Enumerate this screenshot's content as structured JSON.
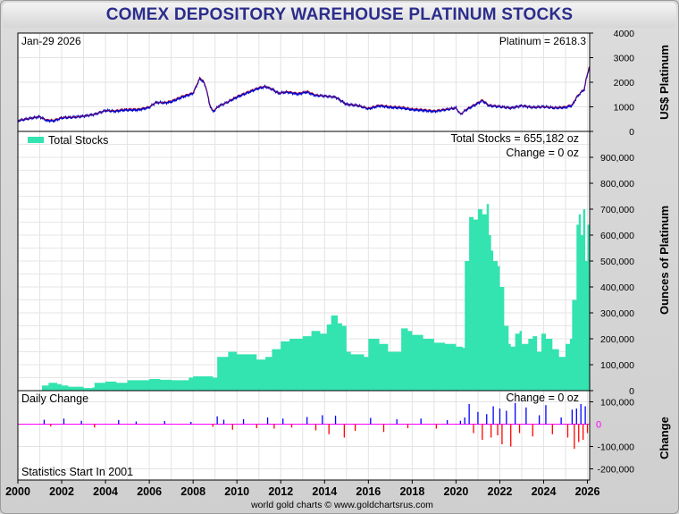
{
  "title": "COMEX DEPOSITORY WAREHOUSE PLATINUM STOCKS",
  "footer": "world gold charts © www.goldchartsrus.com",
  "colors": {
    "stocks": "#33e3b0",
    "price_up": "#cc0000",
    "price_down": "#0000cc",
    "zero_line": "#ff00ff",
    "change_pos": "#0000ff",
    "change_neg": "#ff0000"
  },
  "chart_data": [
    {
      "type": "line",
      "name": "price",
      "date_label": "Jan-29  2026",
      "value_label": "Platinum = 2618.3",
      "ylabel": "US$ Platinum",
      "ylim": [
        0,
        4000
      ],
      "yticks": [
        0,
        1000,
        2000,
        3000,
        4000
      ],
      "x": [
        2000.0,
        2000.5,
        2001.0,
        2001.3,
        2001.6,
        2002.0,
        2002.5,
        2003.0,
        2003.5,
        2004.0,
        2004.4,
        2004.8,
        2005.5,
        2006.0,
        2006.3,
        2006.7,
        2007.0,
        2007.5,
        2008.0,
        2008.15,
        2008.3,
        2008.45,
        2008.6,
        2008.75,
        2008.9,
        2009.2,
        2009.6,
        2010.0,
        2010.5,
        2011.0,
        2011.3,
        2011.6,
        2011.9,
        2012.3,
        2012.8,
        2013.2,
        2013.6,
        2014.0,
        2014.5,
        2015.0,
        2015.5,
        2016.0,
        2016.5,
        2017.0,
        2017.5,
        2018.0,
        2018.5,
        2019.0,
        2019.5,
        2020.0,
        2020.2,
        2020.5,
        2021.0,
        2021.2,
        2021.5,
        2022.0,
        2022.5,
        2023.0,
        2023.5,
        2024.0,
        2024.5,
        2025.0,
        2025.3,
        2025.5,
        2025.7,
        2025.85,
        2025.95,
        2026.08
      ],
      "values": [
        430,
        520,
        600,
        450,
        420,
        550,
        570,
        620,
        700,
        850,
        820,
        860,
        880,
        980,
        1180,
        1160,
        1200,
        1400,
        1550,
        1850,
        2150,
        2050,
        1750,
        1100,
        800,
        1050,
        1200,
        1400,
        1580,
        1750,
        1820,
        1720,
        1550,
        1600,
        1520,
        1600,
        1460,
        1440,
        1400,
        1100,
        1050,
        920,
        1050,
        980,
        950,
        880,
        860,
        820,
        880,
        950,
        700,
        900,
        1150,
        1250,
        1050,
        1000,
        950,
        1050,
        980,
        1000,
        950,
        980,
        1050,
        1380,
        1580,
        1700,
        2150,
        2618.3
      ]
    },
    {
      "type": "area",
      "name": "total_stocks",
      "legend": "Total Stocks",
      "total_label": "Total Stocks = 655,182 oz",
      "change_label": "Change = 0 oz",
      "ylabel": "Ounces of Platinum",
      "ylim": [
        0,
        1000000
      ],
      "yticks": [
        0,
        100000,
        200000,
        300000,
        400000,
        500000,
        600000,
        700000,
        800000,
        900000
      ],
      "ytick_labels": [
        "0",
        "100,000",
        "200,000",
        "300,000",
        "400,000",
        "500,000",
        "600,000",
        "700,000",
        "800,000",
        "900,000"
      ],
      "x": [
        2001.1,
        2001.4,
        2001.8,
        2002.0,
        2002.3,
        2003.0,
        2003.4,
        2003.5,
        2004.0,
        2004.5,
        2005.0,
        2006.0,
        2006.5,
        2007.0,
        2007.8,
        2008.0,
        2008.9,
        2009.1,
        2009.6,
        2010.0,
        2010.9,
        2011.3,
        2011.6,
        2012.0,
        2012.4,
        2013.0,
        2013.4,
        2013.8,
        2014.1,
        2014.3,
        2014.6,
        2014.8,
        2015.0,
        2015.2,
        2015.8,
        2016.0,
        2016.5,
        2016.9,
        2017.5,
        2017.8,
        2018.0,
        2018.5,
        2019.0,
        2019.5,
        2020.0,
        2020.3,
        2020.4,
        2020.6,
        2020.8,
        2021.0,
        2021.2,
        2021.4,
        2021.5,
        2021.6,
        2021.7,
        2021.9,
        2022.0,
        2022.2,
        2022.4,
        2022.5,
        2022.7,
        2022.9,
        2023.0,
        2023.3,
        2023.5,
        2023.7,
        2023.9,
        2024.1,
        2024.4,
        2024.7,
        2025.0,
        2025.2,
        2025.3,
        2025.5,
        2025.6,
        2025.7,
        2025.8,
        2025.9,
        2026.0,
        2026.08
      ],
      "values": [
        20000,
        30000,
        25000,
        20000,
        15000,
        10000,
        12000,
        30000,
        35000,
        30000,
        40000,
        45000,
        42000,
        40000,
        50000,
        55000,
        50000,
        130000,
        150000,
        140000,
        120000,
        130000,
        160000,
        190000,
        200000,
        210000,
        230000,
        220000,
        255000,
        290000,
        260000,
        250000,
        150000,
        140000,
        130000,
        200000,
        180000,
        150000,
        240000,
        230000,
        215000,
        200000,
        185000,
        180000,
        170000,
        165000,
        500000,
        670000,
        660000,
        700000,
        680000,
        720000,
        600000,
        540000,
        500000,
        480000,
        400000,
        250000,
        180000,
        170000,
        220000,
        230000,
        180000,
        200000,
        210000,
        150000,
        220000,
        200000,
        160000,
        130000,
        180000,
        200000,
        350000,
        640000,
        680000,
        600000,
        700000,
        500000,
        640000,
        655182
      ]
    },
    {
      "type": "bar",
      "name": "daily_change",
      "label": "Daily Change",
      "change_label": "Change = 0 oz",
      "ylabel": "Change",
      "note": "Statistics Start In 2001",
      "ylim": [
        -250000,
        150000
      ],
      "yticks": [
        -200000,
        -100000,
        0,
        100000
      ],
      "ytick_labels": [
        "-200,000",
        "-100,000",
        "0",
        "100,000"
      ],
      "x": [
        2001.2,
        2001.5,
        2002.1,
        2002.9,
        2003.5,
        2004.6,
        2005.4,
        2006.7,
        2007.9,
        2008.9,
        2009.1,
        2009.4,
        2009.8,
        2010.3,
        2010.9,
        2011.4,
        2011.7,
        2012.1,
        2012.5,
        2013.2,
        2013.6,
        2013.9,
        2014.2,
        2014.5,
        2014.9,
        2015.4,
        2016.1,
        2016.7,
        2017.3,
        2017.8,
        2018.4,
        2019.1,
        2019.6,
        2020.2,
        2020.4,
        2020.6,
        2020.8,
        2021.0,
        2021.2,
        2021.4,
        2021.6,
        2021.7,
        2021.9,
        2022.0,
        2022.1,
        2022.3,
        2022.5,
        2022.7,
        2022.9,
        2023.2,
        2023.5,
        2023.8,
        2024.1,
        2024.4,
        2024.8,
        2025.1,
        2025.3,
        2025.4,
        2025.5,
        2025.6,
        2025.7,
        2025.8,
        2025.9,
        2026.0
      ],
      "values": [
        20000,
        -10000,
        25000,
        15000,
        -15000,
        18000,
        12000,
        14000,
        10000,
        -12000,
        35000,
        20000,
        -25000,
        22000,
        -18000,
        30000,
        -20000,
        25000,
        -15000,
        32000,
        -28000,
        40000,
        -45000,
        38000,
        -60000,
        -30000,
        28000,
        -35000,
        22000,
        -18000,
        25000,
        -20000,
        18000,
        15000,
        30000,
        90000,
        -40000,
        55000,
        -70000,
        45000,
        -60000,
        80000,
        -50000,
        70000,
        -90000,
        60000,
        -100000,
        95000,
        -40000,
        75000,
        -55000,
        40000,
        85000,
        -45000,
        30000,
        -60000,
        65000,
        -110000,
        70000,
        -80000,
        90000,
        -70000,
        80000,
        -40000
      ]
    }
  ],
  "xaxis": {
    "xlim": [
      2000,
      2026.1
    ],
    "ticks": [
      2000,
      2002,
      2004,
      2006,
      2008,
      2010,
      2012,
      2014,
      2016,
      2018,
      2020,
      2022,
      2024,
      2026
    ],
    "tick_labels": [
      "2000",
      "2002",
      "2004",
      "2006",
      "2008",
      "2010",
      "2012",
      "2014",
      "2016",
      "2018",
      "2020",
      "2022",
      "2024",
      "2026"
    ]
  }
}
